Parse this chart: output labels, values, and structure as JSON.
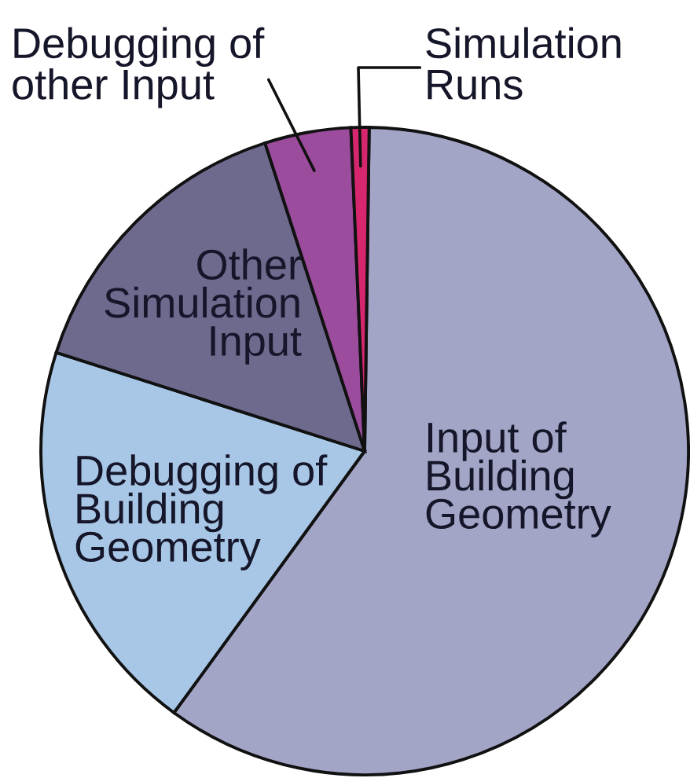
{
  "chart_data": {
    "type": "pie",
    "categories": [
      "Input of\nBuilding\nGeometry",
      "Debugging of\nBuilding\nGeometry",
      "Other\nSimulation\nInput",
      "Debugging of\nother Input",
      "Simulation\nRuns"
    ],
    "values": [
      59.8,
      19.9,
      15.1,
      4.3,
      0.9
    ],
    "colors": [
      "#a2a5c6",
      "#a8c7e6",
      "#6e6a8e",
      "#9b4c9c",
      "#d6276e"
    ]
  }
}
